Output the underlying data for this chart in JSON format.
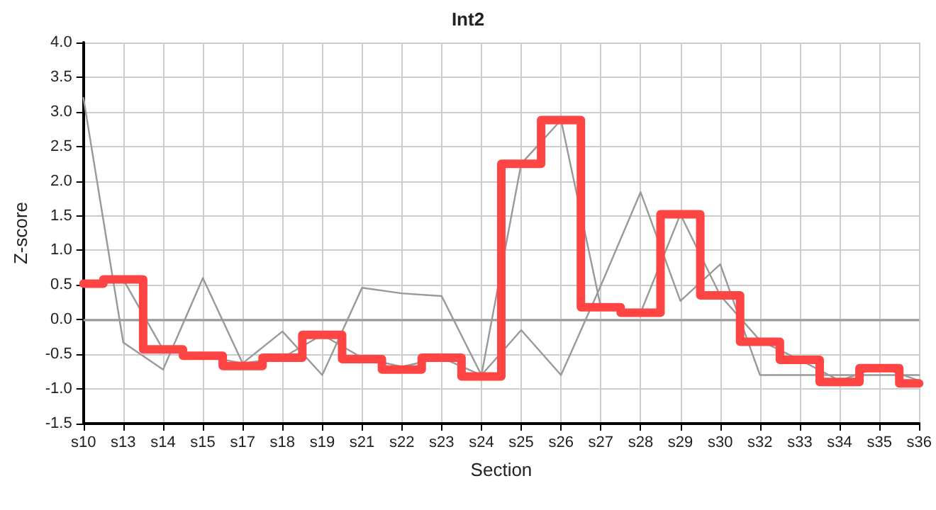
{
  "chart_data": {
    "type": "line",
    "title": "Int2",
    "xlabel": "Section",
    "ylabel": "Z-score",
    "categories": [
      "s10",
      "s13",
      "s14",
      "s15",
      "s17",
      "s18",
      "s19",
      "s21",
      "s22",
      "s23",
      "s24",
      "s25",
      "s26",
      "s27",
      "s28",
      "s29",
      "s30",
      "s32",
      "s33",
      "s34",
      "s35",
      "s36"
    ],
    "series": [
      {
        "color": "#999999",
        "values": [
          3.2,
          -0.33,
          -0.72,
          0.6,
          -0.63,
          -0.17,
          -0.8,
          0.46,
          0.38,
          0.34,
          -0.8,
          -0.15,
          -0.8,
          0.49,
          1.84,
          0.27,
          0.8,
          -0.8,
          -0.8,
          -0.8,
          -0.8,
          -0.8
        ]
      },
      {
        "color": "#999999",
        "values": [
          0.52,
          0.58,
          -0.43,
          -0.52,
          -0.63,
          -0.55,
          -0.22,
          -0.55,
          -0.68,
          -0.55,
          -0.8,
          2.25,
          2.88,
          0.18,
          0.1,
          1.52,
          0.35,
          -0.3,
          -0.58,
          -0.88,
          -0.68,
          -0.88
        ]
      },
      {
        "type": "step",
        "color": "#ff4444",
        "values": [
          0.52,
          0.58,
          -0.43,
          -0.52,
          -0.67,
          -0.55,
          -0.22,
          -0.57,
          -0.72,
          -0.55,
          -0.82,
          2.25,
          2.88,
          0.18,
          0.1,
          1.52,
          0.35,
          -0.32,
          -0.58,
          -0.9,
          -0.7,
          -0.92
        ]
      }
    ],
    "ylim": [
      -1.5,
      4
    ],
    "yticks": [
      {
        "value": -1.5,
        "label": "-1.5"
      },
      {
        "value": -1,
        "label": "-1.0"
      },
      {
        "value": -0.5,
        "label": "-0.5"
      },
      {
        "value": 0,
        "label": "0.0"
      },
      {
        "value": 0.5,
        "label": "0.5"
      },
      {
        "value": 1,
        "label": "1.0"
      },
      {
        "value": 1.5,
        "label": "1.5"
      },
      {
        "value": 2,
        "label": "2.0"
      },
      {
        "value": 2.5,
        "label": "2.5"
      },
      {
        "value": 3,
        "label": "3.0"
      },
      {
        "value": 3.5,
        "label": "3.5"
      },
      {
        "value": 4,
        "label": "4.0"
      }
    ],
    "ref_lines": [
      {
        "axis": "y",
        "value": 0,
        "color": "#999999"
      }
    ],
    "grid": true,
    "marker": "none"
  }
}
